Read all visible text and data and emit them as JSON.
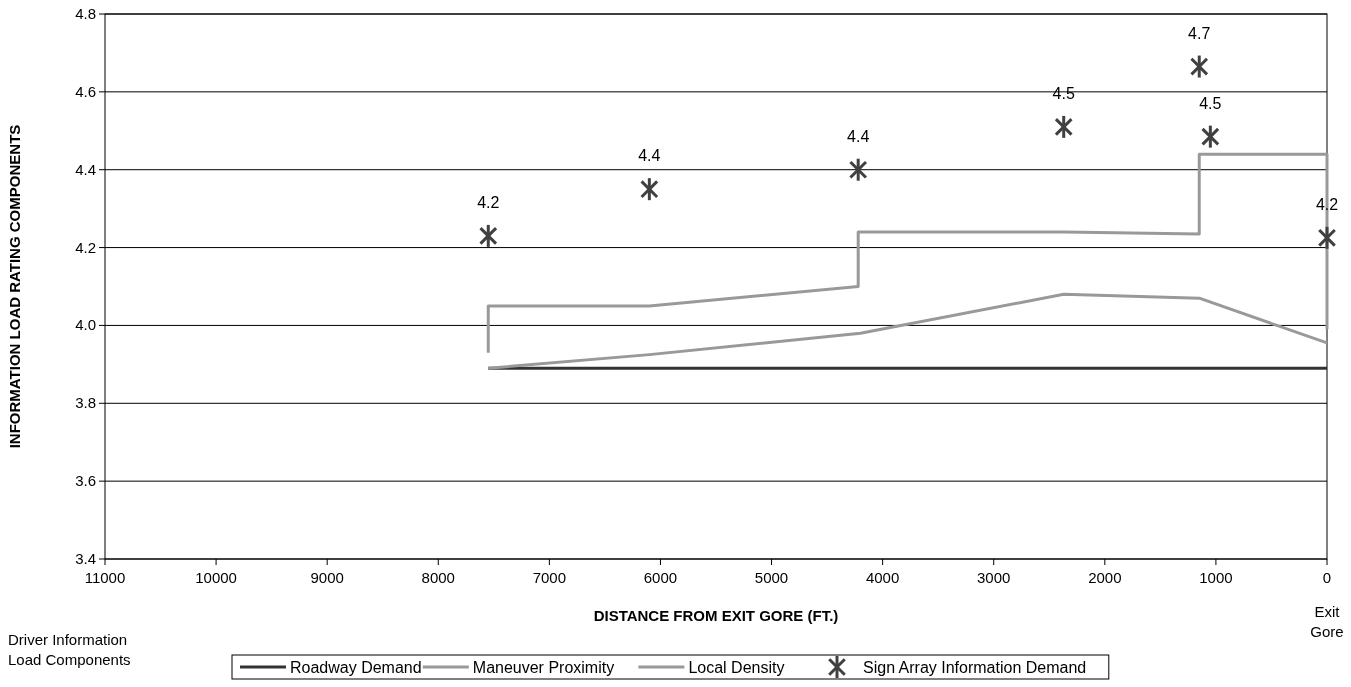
{
  "chart_data": {
    "type": "line",
    "xlabel": "DISTANCE FROM EXIT GORE (FT.)",
    "ylabel": "INFORMATION LOAD RATING COMPONENTS",
    "xlim": [
      11000,
      0
    ],
    "xticks": [
      11000,
      10000,
      9000,
      8000,
      7000,
      6000,
      5000,
      4000,
      3000,
      2000,
      1000,
      0
    ],
    "ylim": [
      3.4,
      4.8
    ],
    "yticks": [
      3.4,
      3.6,
      3.8,
      {
        "value": 4,
        "label": "4.0"
      },
      4.2,
      4.4,
      4.6,
      4.8
    ],
    "grid": "y",
    "legend": "bottom",
    "line_style": "solid",
    "annotations": [
      "Exit Gore",
      "Driver Information Load Components"
    ],
    "series": [
      {
        "name": "Roadway Demand",
        "color": "#333333",
        "x": [
          7550,
          0
        ],
        "values": [
          3.89,
          3.89
        ]
      },
      {
        "name": "Maneuver Proximity",
        "color": "#999999",
        "x": [
          7550,
          6100,
          4200,
          2370,
          1150,
          0
        ],
        "values": [
          3.89,
          3.925,
          3.98,
          4.08,
          4.07,
          3.955
        ]
      },
      {
        "name": "Local Density",
        "color": "#999999",
        "x": [
          7550,
          7550,
          6100,
          4220,
          4220,
          2370,
          1150,
          1150,
          0,
          0
        ],
        "values": [
          3.93,
          4.05,
          4.05,
          4.1,
          4.24,
          4.24,
          4.235,
          4.44,
          4.44,
          3.99
        ]
      },
      {
        "name": "Sign Array Information Demand",
        "type": "scatter",
        "marker": "cross",
        "color": "#404040",
        "x": [
          7550,
          6100,
          4220,
          2370,
          1150,
          1050,
          0
        ],
        "values": [
          4.23,
          4.35,
          4.4,
          4.51,
          4.665,
          4.485,
          4.225
        ],
        "value_labels": [
          "4.2",
          "4.4",
          "4.4",
          "4.5",
          "4.7",
          "4.5",
          "4.2"
        ]
      }
    ]
  }
}
